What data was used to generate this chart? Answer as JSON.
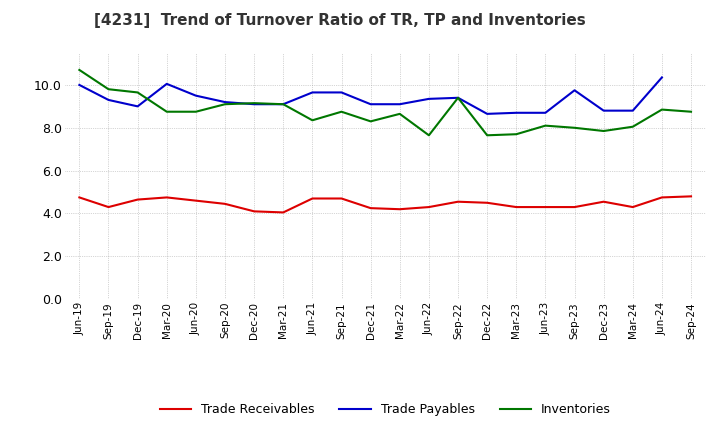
{
  "title": "[4231]  Trend of Turnover Ratio of TR, TP and Inventories",
  "x_labels": [
    "Jun-19",
    "Sep-19",
    "Dec-19",
    "Mar-20",
    "Jun-20",
    "Sep-20",
    "Dec-20",
    "Mar-21",
    "Jun-21",
    "Sep-21",
    "Dec-21",
    "Mar-22",
    "Jun-22",
    "Sep-22",
    "Dec-22",
    "Mar-23",
    "Jun-23",
    "Sep-23",
    "Dec-23",
    "Mar-24",
    "Jun-24",
    "Sep-24"
  ],
  "trade_receivables": [
    4.75,
    4.3,
    4.65,
    4.75,
    4.6,
    4.45,
    4.1,
    4.05,
    4.7,
    4.7,
    4.25,
    4.2,
    4.3,
    4.55,
    4.5,
    4.3,
    4.3,
    4.3,
    4.55,
    4.3,
    4.75,
    4.8
  ],
  "trade_payables": [
    10.0,
    9.3,
    9.0,
    10.05,
    9.5,
    9.2,
    9.1,
    9.1,
    9.65,
    9.65,
    9.1,
    9.1,
    9.35,
    9.4,
    8.65,
    8.7,
    8.7,
    9.75,
    8.8,
    8.8,
    10.35,
    null
  ],
  "inventories": [
    10.7,
    9.8,
    9.65,
    8.75,
    8.75,
    9.1,
    9.15,
    9.1,
    8.35,
    8.75,
    8.3,
    8.65,
    7.65,
    9.4,
    7.65,
    7.7,
    8.1,
    8.0,
    7.85,
    8.05,
    8.85,
    8.75
  ],
  "color_tr": "#dd0000",
  "color_tp": "#0000cc",
  "color_inv": "#007700",
  "ylim": [
    0,
    11.5
  ],
  "yticks": [
    0.0,
    2.0,
    4.0,
    6.0,
    8.0,
    10.0
  ],
  "legend_labels": [
    "Trade Receivables",
    "Trade Payables",
    "Inventories"
  ],
  "bg_color": "#ffffff",
  "grid_color": "#999999"
}
